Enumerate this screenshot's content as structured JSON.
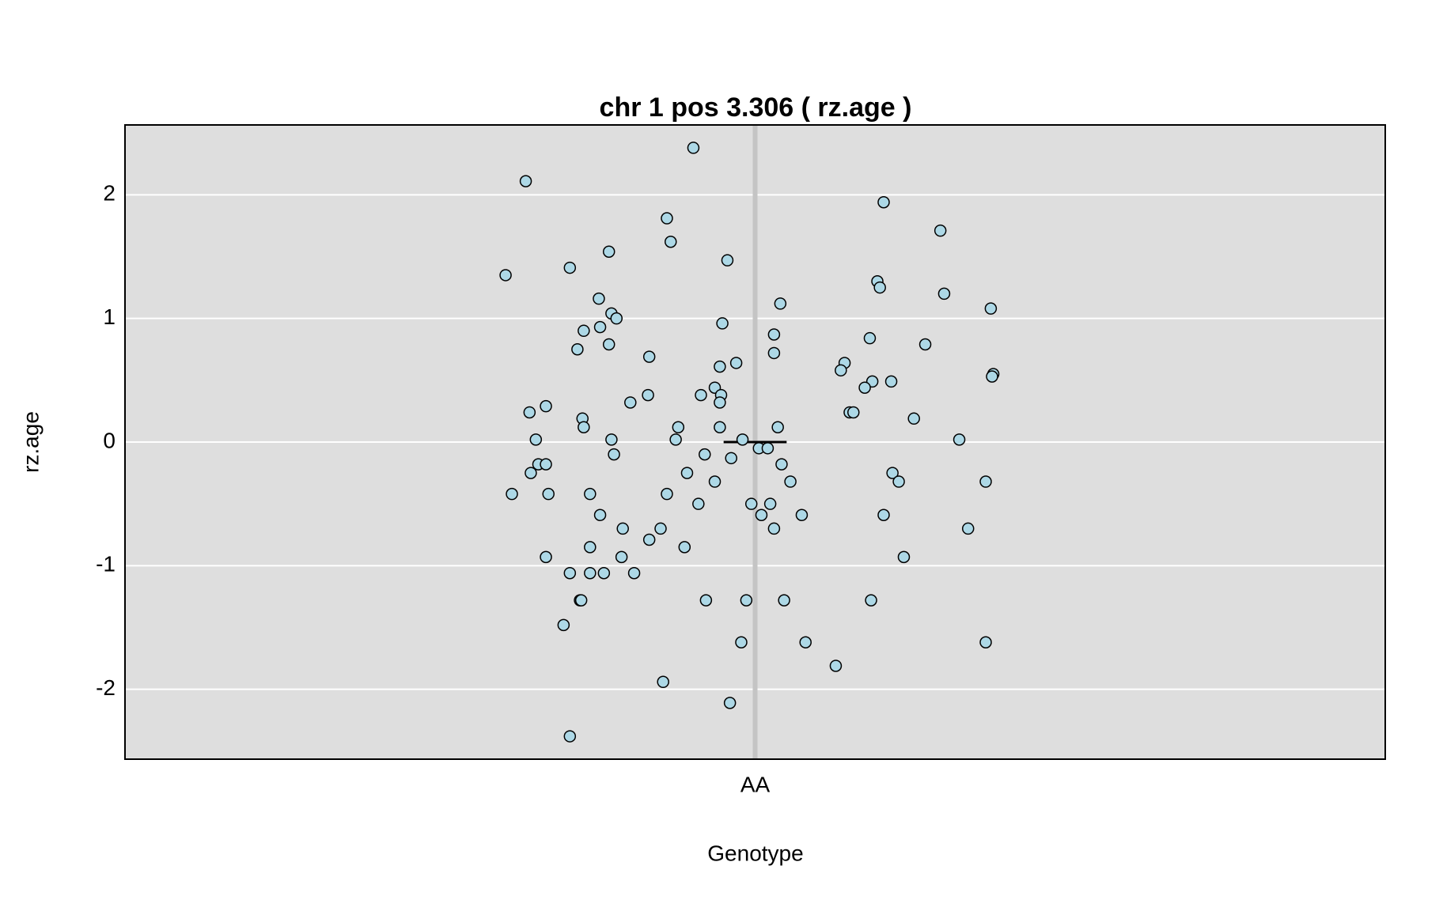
{
  "chart_data": {
    "type": "scatter",
    "title": "chr 1 pos 3.306 ( rz.age )",
    "x_label": "Genotype",
    "y_label": "rz.age",
    "xlim": [
      0.5,
      1.5
    ],
    "xticks": [
      {
        "value": 1,
        "label": "AA"
      }
    ],
    "ylim": [
      -2.565,
      2.565
    ],
    "yticks": [
      -2,
      -1,
      0,
      1,
      2
    ],
    "grid": true,
    "color": "#add8e6",
    "mean": 0,
    "x": [
      -0.049,
      -0.182,
      0.102,
      -0.07,
      0.147,
      -0.067,
      -0.116,
      -0.022,
      -0.147,
      -0.198,
      0.097,
      0.099,
      0.15,
      -0.124,
      0.02,
      0.187,
      -0.114,
      -0.11,
      -0.026,
      -0.123,
      -0.136,
      0.015,
      0.091,
      -0.116,
      0.135,
      -0.141,
      0.015,
      -0.084,
      -0.015,
      0.071,
      -0.028,
      0.068,
      0.189,
      0.188,
      0.093,
      0.108,
      -0.032,
      0.087,
      -0.043,
      -0.027,
      -0.085,
      -0.099,
      -0.028,
      -0.166,
      -0.179,
      0.075,
      0.078,
      0.126,
      -0.137,
      -0.136,
      -0.061,
      -0.028,
      0.018,
      -0.174,
      -0.114,
      -0.063,
      -0.01,
      0.162,
      0.003,
      0.01,
      -0.112,
      -0.04,
      -0.019,
      -0.172,
      -0.166,
      0.021,
      -0.178,
      -0.054,
      0.109,
      -0.032,
      0.028,
      0.114,
      0.183,
      -0.193,
      -0.164,
      -0.131,
      -0.07,
      -0.045,
      -0.003,
      0.012,
      -0.123,
      0.005,
      0.037,
      0.102,
      -0.105,
      -0.075,
      0.015,
      0.169,
      -0.084,
      -0.131,
      -0.056,
      -0.166,
      -0.106,
      0.118,
      -0.147,
      -0.131,
      -0.12,
      -0.096,
      -0.139,
      -0.138,
      -0.039,
      -0.007,
      0.023,
      0.092,
      -0.152,
      -0.011,
      0.04,
      0.183,
      0.064,
      -0.073,
      -0.02,
      -0.147
    ],
    "values": [
      2.38,
      2.11,
      1.94,
      1.81,
      1.71,
      1.62,
      1.54,
      1.47,
      1.41,
      1.35,
      1.3,
      1.25,
      1.2,
      1.16,
      1.12,
      1.08,
      1.04,
      1.0,
      0.96,
      0.93,
      0.9,
      0.87,
      0.84,
      0.79,
      0.79,
      0.75,
      0.72,
      0.69,
      0.64,
      0.64,
      0.61,
      0.58,
      0.55,
      0.53,
      0.49,
      0.49,
      0.44,
      0.44,
      0.38,
      0.38,
      0.38,
      0.32,
      0.32,
      0.29,
      0.24,
      0.24,
      0.24,
      0.19,
      0.19,
      0.12,
      0.12,
      0.12,
      0.12,
      0.02,
      0.02,
      0.02,
      0.02,
      0.02,
      -0.05,
      -0.05,
      -0.1,
      -0.1,
      -0.13,
      -0.18,
      -0.18,
      -0.18,
      -0.25,
      -0.25,
      -0.25,
      -0.32,
      -0.32,
      -0.32,
      -0.32,
      -0.42,
      -0.42,
      -0.42,
      -0.42,
      -0.5,
      -0.5,
      -0.5,
      -0.59,
      -0.59,
      -0.59,
      -0.59,
      -0.7,
      -0.7,
      -0.7,
      -0.7,
      -0.79,
      -0.85,
      -0.85,
      -0.93,
      -0.93,
      -0.93,
      -1.06,
      -1.06,
      -1.06,
      -1.06,
      -1.28,
      -1.28,
      -1.28,
      -1.28,
      -1.28,
      -1.28,
      -1.48,
      -1.62,
      -1.62,
      -1.62,
      -1.81,
      -1.94,
      -2.11,
      -2.38
    ]
  }
}
